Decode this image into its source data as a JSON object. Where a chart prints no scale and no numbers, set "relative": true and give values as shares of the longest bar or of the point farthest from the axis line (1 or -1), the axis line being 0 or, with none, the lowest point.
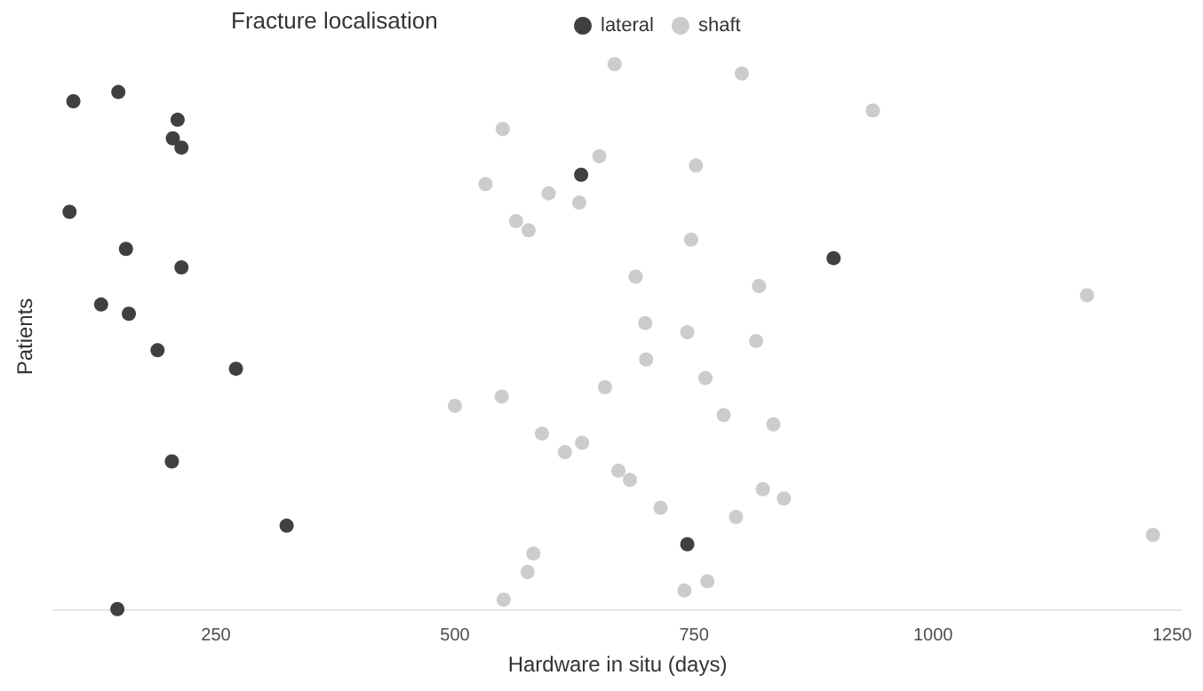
{
  "chart_data": {
    "type": "scatter",
    "xlabel": "Hardware in situ (days)",
    "ylabel": "Patients",
    "legend_title": "Fracture localisation",
    "legend": "top",
    "grid": false,
    "marker": "circle",
    "tick_labels": "x",
    "relative": true,
    "xlim": [
      80,
      1260
    ],
    "xticks": [
      250,
      500,
      750,
      1000,
      1250
    ],
    "series": [
      {
        "name": "lateral",
        "color": "#404040",
        "x": [
          101,
          148,
          210,
          205,
          214,
          97,
          156,
          214,
          130,
          159,
          189,
          271,
          204,
          324,
          147,
          632,
          896,
          743
        ],
        "values": [
          0.932,
          0.949,
          0.898,
          0.864,
          0.847,
          0.729,
          0.661,
          0.627,
          0.559,
          0.542,
          0.475,
          0.441,
          0.271,
          0.153,
          0,
          0.797,
          0.644,
          0.119
        ]
      },
      {
        "name": "shaft",
        "color": "#cccccc",
        "x": [
          667,
          800,
          550,
          651,
          752,
          532,
          598,
          630,
          564,
          577,
          747,
          689,
          818,
          699,
          743,
          815,
          700,
          762,
          657,
          549,
          500,
          781,
          833,
          591,
          633,
          615,
          671,
          683,
          822,
          844,
          715,
          794,
          582,
          576,
          764,
          740,
          551,
          937,
          1161,
          1230
        ],
        "values": [
          1,
          0.983,
          0.881,
          0.831,
          0.814,
          0.78,
          0.763,
          0.746,
          0.712,
          0.695,
          0.678,
          0.61,
          0.593,
          0.525,
          0.508,
          0.492,
          0.458,
          0.424,
          0.407,
          0.39,
          0.373,
          0.356,
          0.339,
          0.322,
          0.305,
          0.288,
          0.254,
          0.237,
          0.22,
          0.203,
          0.186,
          0.169,
          0.102,
          0.068,
          0.051,
          0.034,
          0.017,
          0.915,
          0.576,
          0.136
        ]
      }
    ]
  }
}
